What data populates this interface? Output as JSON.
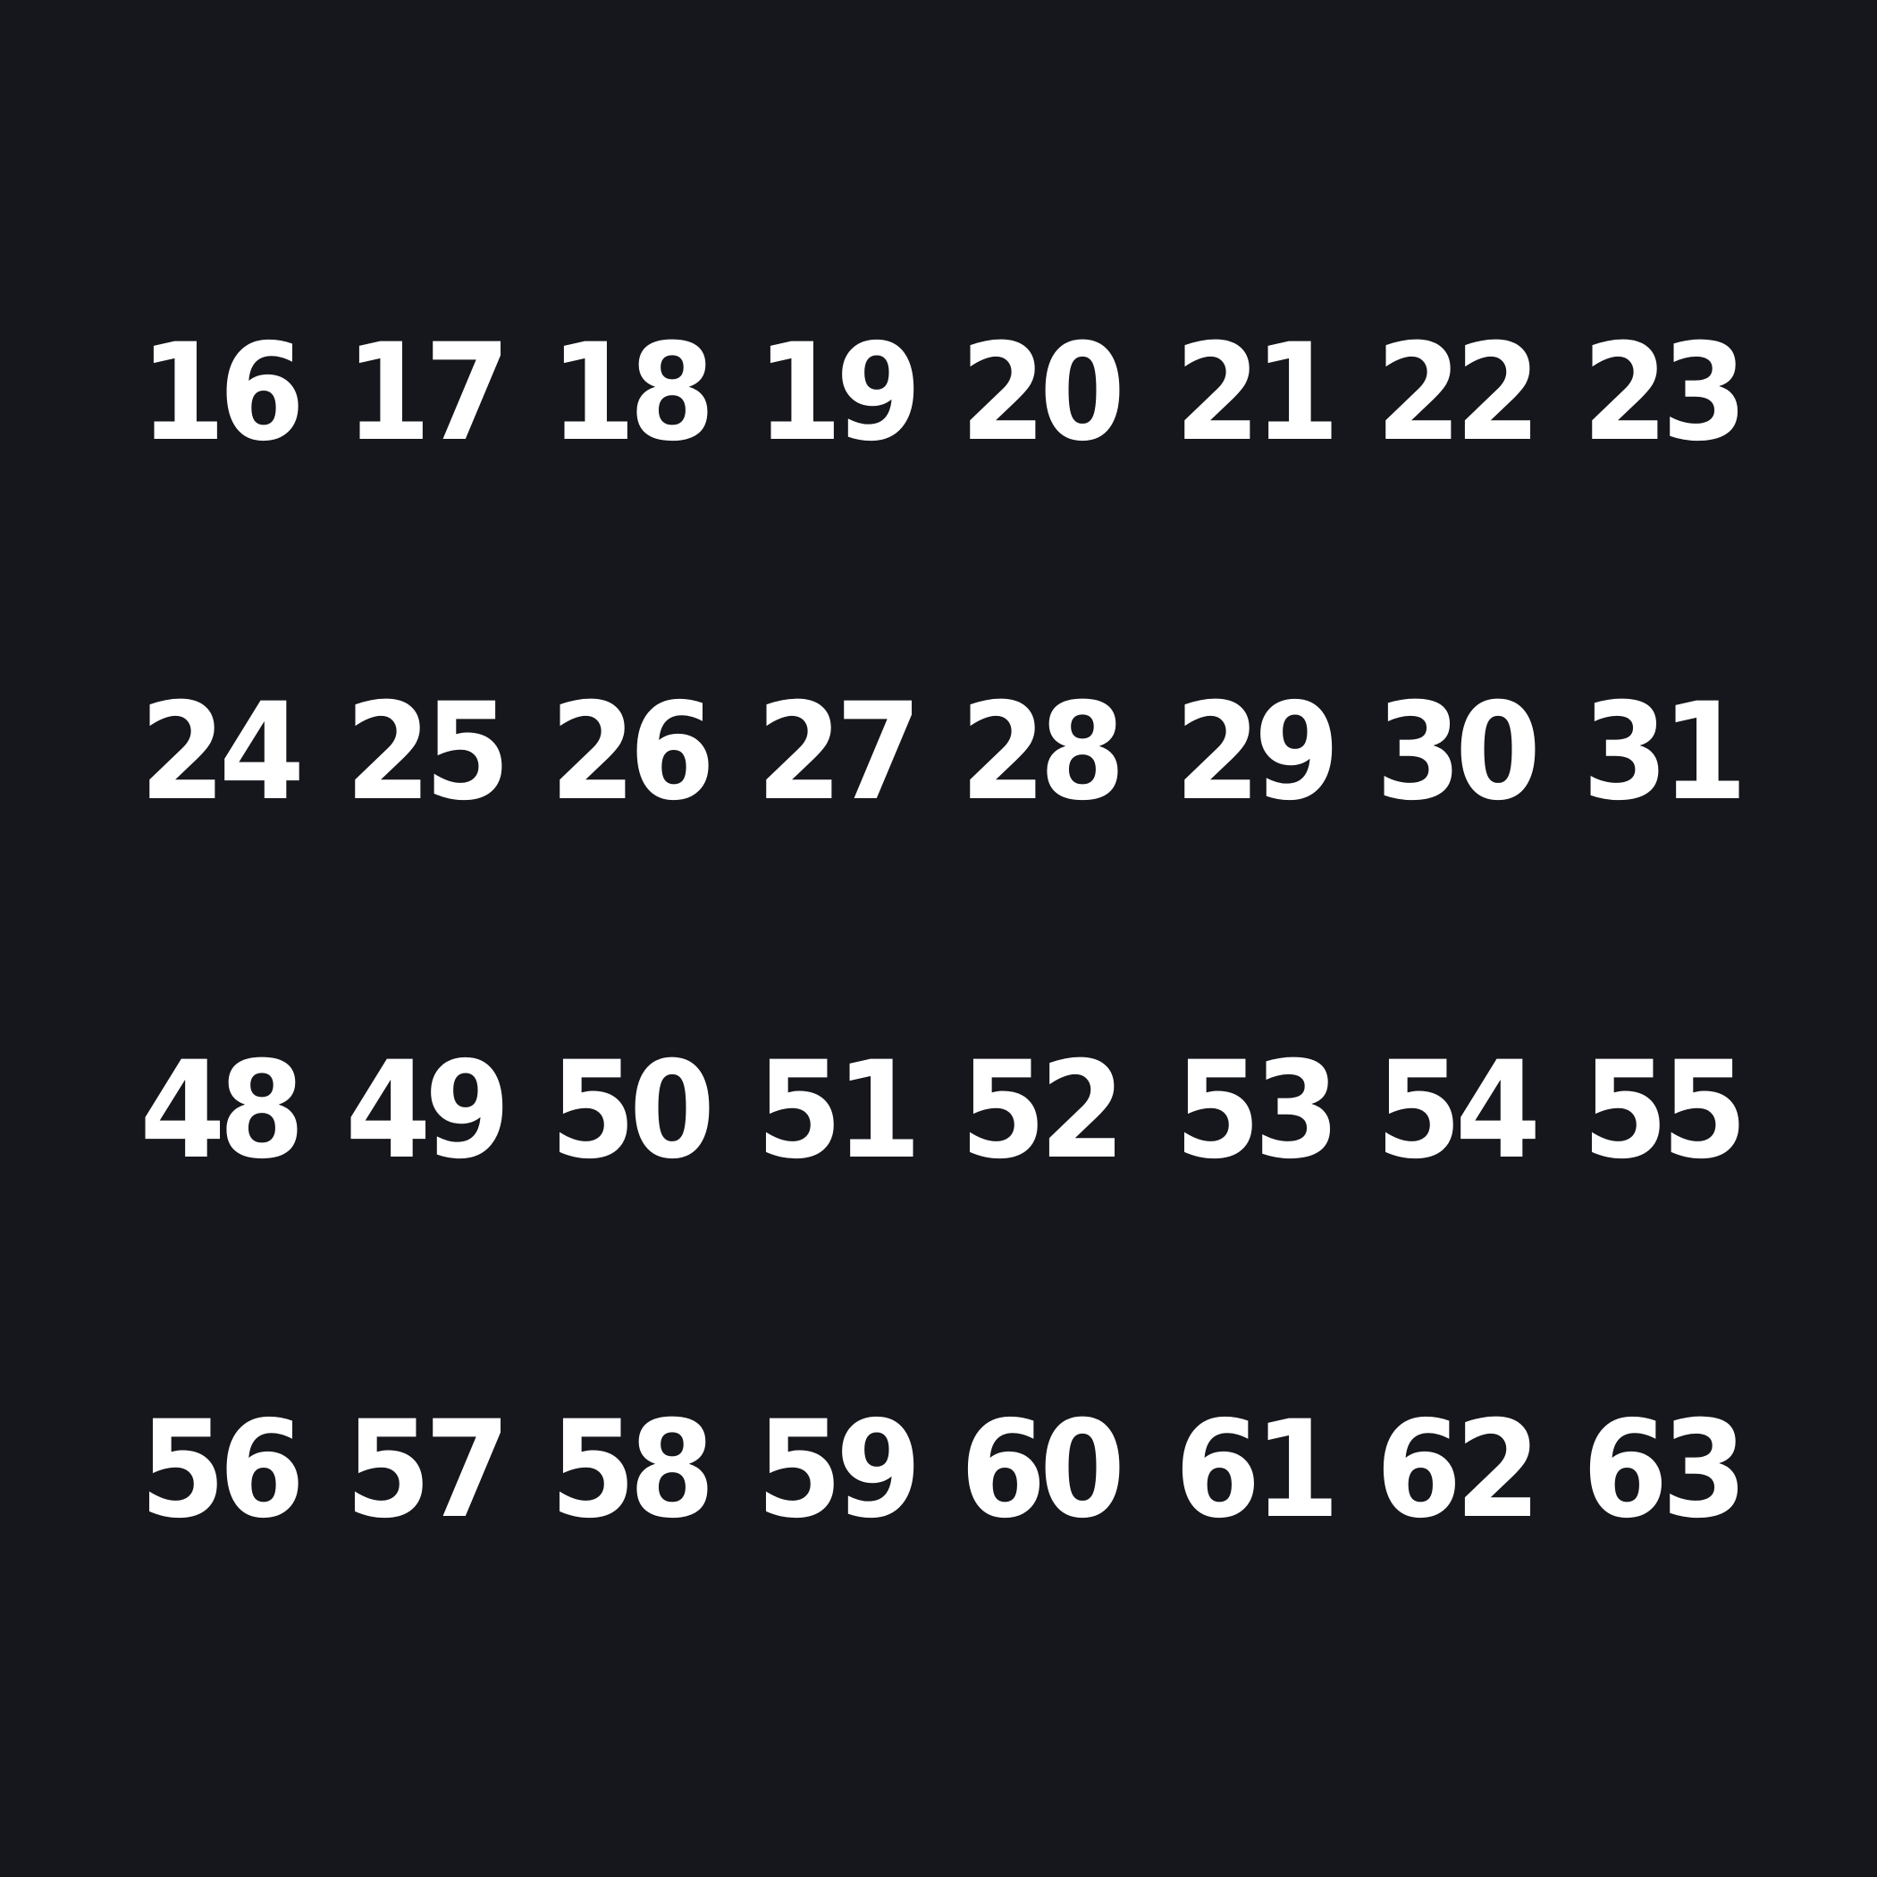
{
  "background_color": "#16171c",
  "text_color": "#ffffff",
  "rows": [
    [
      "16",
      "17",
      "18",
      "19",
      "20",
      "21",
      "22",
      "23"
    ],
    [
      "24",
      "25",
      "26",
      "27",
      "28",
      "29",
      "30",
      "31"
    ],
    [
      "48",
      "49",
      "50",
      "51",
      "52",
      "53",
      "54",
      "55"
    ],
    [
      "56",
      "57",
      "58",
      "59",
      "60",
      "61",
      "62",
      "63"
    ]
  ]
}
